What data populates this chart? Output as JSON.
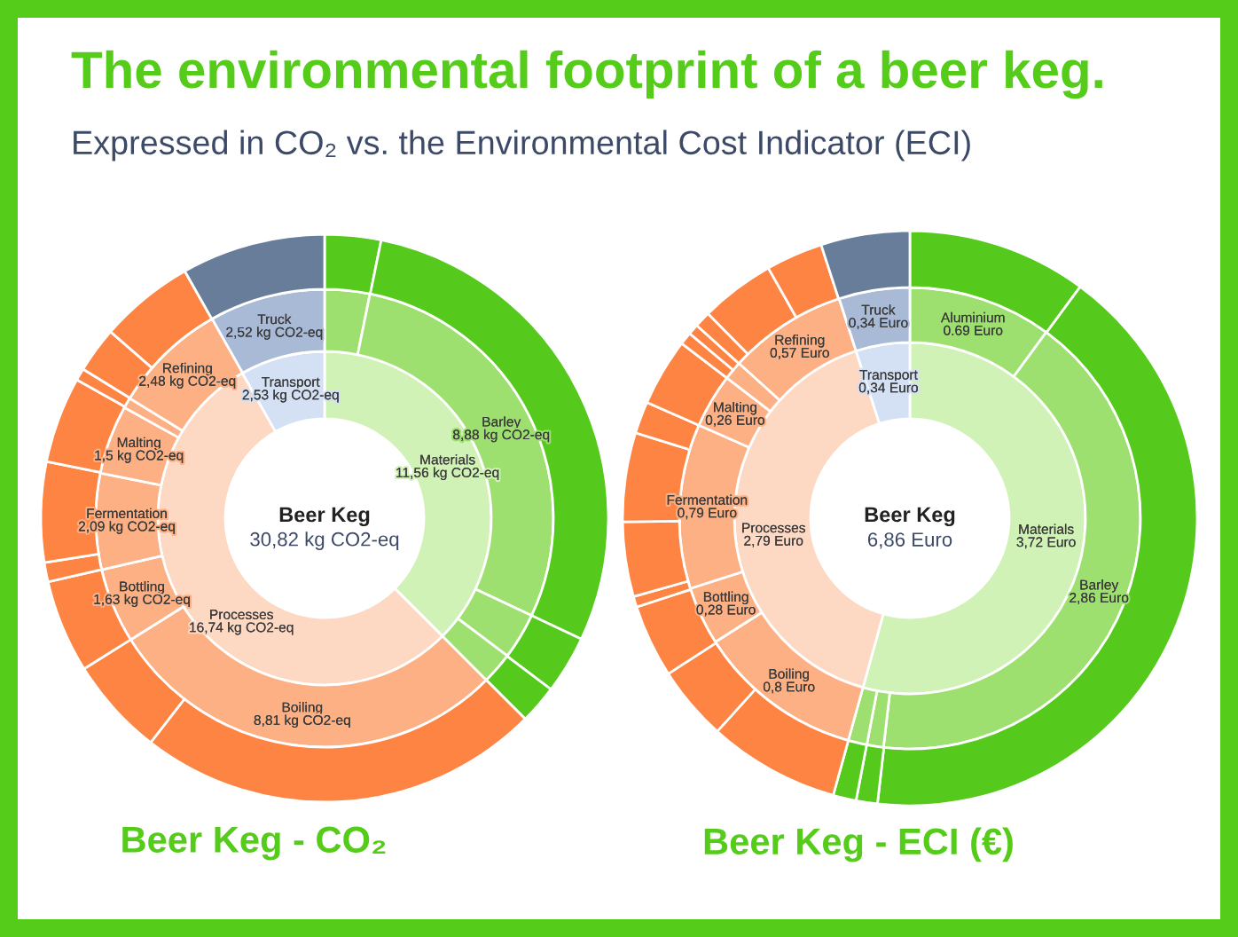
{
  "chart_data": [
    {
      "type": "donut",
      "title": "The environmental footprint of a beer keg.",
      "subtitle": "Expressed in CO₂ vs. the Environmental Cost Indicator (ECI)",
      "xlabel": "Beer Keg - CO₂",
      "annotations": [
        "Beer Keg",
        "30,82 kg CO2-eq"
      ],
      "series": [
        {
          "values": [
            11.56,
            16.74,
            2.53
          ],
          "value_labels": [
            "Materials\n11,56 kg CO2-eq",
            "Processes\n16,74 kg CO2-eq",
            "Transport\n2,53 kg CO2-eq"
          ],
          "colors": [
            "#d1f2b6",
            "#fdd8c3",
            "#d4e0f4"
          ]
        },
        {
          "values": [
            0.98,
            8.88,
            1.01,
            0.69,
            8.81,
            1.63,
            2.09,
            1.5,
            0.23,
            2.48,
            2.52
          ],
          "value_labels": [
            null,
            "Barley\n8,88 kg CO2-eq",
            null,
            null,
            "Boiling\n8,81 kg CO2-eq",
            "Bottling\n1,63 kg CO2-eq",
            "Fermentation\n2,09 kg CO2-eq",
            "Malting\n1,5 kg CO2-eq",
            null,
            "Refining\n2,48 kg CO2-eq",
            "Truck\n2,52 kg CO2-eq"
          ],
          "colors": [
            "#9de070",
            "#9de070",
            "#9de070",
            "#9de070",
            "#fdb084",
            "#fdb084",
            "#fdb084",
            "#fdb084",
            "#fdb084",
            "#fdb084",
            "#a9bad6"
          ]
        },
        {
          "values": [
            3.2,
            28.8,
            3.3,
            2.2,
            23.0,
            5.6,
            5.3,
            1.1,
            5.7,
            4.9,
            0.7,
            2.6,
            5.4,
            8.2
          ],
          "colors": [
            "#55c91c",
            "#55c91c",
            "#55c91c",
            "#55c91c",
            "#fe8443",
            "#fe8443",
            "#fe8443",
            "#fe8443",
            "#fe8443",
            "#fe8443",
            "#fe8443",
            "#fe8443",
            "#fe8443",
            "#687d9a"
          ]
        }
      ]
    },
    {
      "type": "donut",
      "xlabel": "Beer Keg - ECI (€)",
      "annotations": [
        "Beer Keg",
        "6,86 Euro"
      ],
      "series": [
        {
          "values": [
            3.72,
            2.79,
            0.34
          ],
          "value_labels": [
            "Materials\n3,72 Euro",
            "Processes\n2,79 Euro",
            "Transport\n0,34 Euro"
          ],
          "colors": [
            "#d1f2b6",
            "#fdd8c3",
            "#d4e0f4"
          ]
        },
        {
          "values": [
            0.69,
            2.86,
            0.08,
            0.09,
            0.8,
            0.28,
            0.79,
            0.26,
            0.09,
            0.57,
            0.34
          ],
          "value_labels": [
            "Aluminium\n0.69 Euro",
            "Barley\n2,86 Euro",
            null,
            null,
            "Boiling\n0,8 Euro",
            "Bottling\n0,28 Euro",
            "Fermentation\n0,79 Euro",
            "Malting\n0,26 Euro",
            null,
            "Refining\n0,57 Euro",
            "Truck\n0,34 Euro"
          ],
          "colors": [
            "#9de070",
            "#9de070",
            "#9de070",
            "#9de070",
            "#fdb084",
            "#fdb084",
            "#fdb084",
            "#fdb084",
            "#fdb084",
            "#fdb084",
            "#a9bad6"
          ]
        },
        {
          "values": [
            10.1,
            41.7,
            1.2,
            1.3,
            7.4,
            4.2,
            4.1,
            0.6,
            4.2,
            5.0,
            1.8,
            3.8,
            0.7,
            0.6,
            0.9,
            4.2,
            3.2,
            5.0
          ],
          "colors": [
            "#55c91c",
            "#55c91c",
            "#55c91c",
            "#55c91c",
            "#fe8443",
            "#fe8443",
            "#fe8443",
            "#fe8443",
            "#fe8443",
            "#fe8443",
            "#fe8443",
            "#fe8443",
            "#fe8443",
            "#fe8443",
            "#fe8443",
            "#fe8443",
            "#fe8443",
            "#687d9a"
          ]
        }
      ]
    }
  ]
}
